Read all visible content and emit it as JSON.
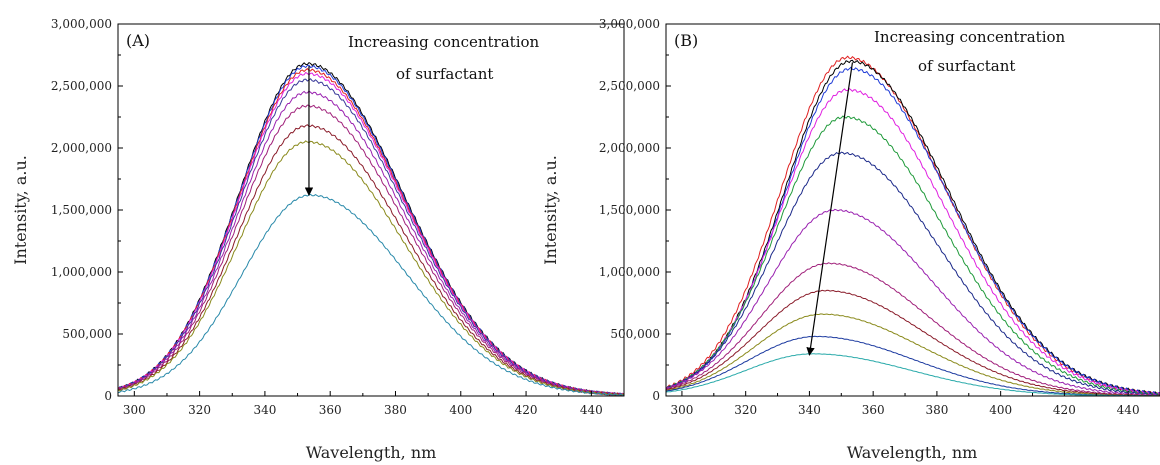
{
  "chart_data": [
    {
      "type": "line",
      "panel_label": "(A)",
      "annotation": [
        "Increasing concentration",
        "of surfactant"
      ],
      "xlabel": "Wavelength, nm",
      "ylabel": "Intensity, a.u.",
      "xlim": [
        295,
        450
      ],
      "ylim": [
        0,
        3000000
      ],
      "x_ticks": [
        "300",
        "320",
        "340",
        "360",
        "380",
        "400",
        "420",
        "440"
      ],
      "y_ticks": [
        "0",
        "500,000",
        "1,000,000",
        "1,500,000",
        "2,000,000",
        "2,500,000",
        "3,000,000"
      ],
      "curve_shape": {
        "x_start": 295,
        "x_end": 450,
        "sigma_left": 21,
        "sigma_right": 29.5
      },
      "arrow": {
        "from": [
          353.5,
          2660000
        ],
        "to": [
          353.5,
          1620000
        ]
      },
      "series": [
        {
          "color": "#000000",
          "peak_x": 353,
          "peak_y": 2680000
        },
        {
          "color": "#1f3bd6",
          "peak_x": 353,
          "peak_y": 2660000
        },
        {
          "color": "#e02020",
          "peak_x": 353,
          "peak_y": 2630000
        },
        {
          "color": "#e020e0",
          "peak_x": 353,
          "peak_y": 2600000
        },
        {
          "color": "#3a3a9a",
          "peak_x": 353,
          "peak_y": 2550000
        },
        {
          "color": "#9a22b0",
          "peak_x": 353,
          "peak_y": 2450000
        },
        {
          "color": "#a0207a",
          "peak_x": 353,
          "peak_y": 2340000
        },
        {
          "color": "#8a1c2a",
          "peak_x": 353,
          "peak_y": 2180000
        },
        {
          "color": "#8a8a1c",
          "peak_x": 353,
          "peak_y": 2050000
        },
        {
          "color": "#2a8aaa",
          "peak_x": 354,
          "peak_y": 1620000
        }
      ]
    },
    {
      "type": "line",
      "panel_label": "(B)",
      "annotation": [
        "Increasing concentration",
        "of surfactant"
      ],
      "xlabel": "Wavelength, nm",
      "ylabel": "Intensity, a.u.",
      "xlim": [
        295,
        450
      ],
      "ylim": [
        0,
        3000000
      ],
      "x_ticks": [
        "300",
        "320",
        "340",
        "360",
        "380",
        "400",
        "420",
        "440"
      ],
      "y_ticks": [
        "0",
        "500,000",
        "1,000,000",
        "1,500,000",
        "2,000,000",
        "2,500,000",
        "3,000,000"
      ],
      "curve_shape": {
        "x_start": 295,
        "x_end": 450,
        "sigma_left": 21,
        "sigma_right": 31
      },
      "arrow": {
        "from": [
          353.5,
          2690000
        ],
        "to": [
          340,
          330000
        ]
      },
      "series": [
        {
          "color": "#e02020",
          "peak_x": 352,
          "peak_y": 2730000
        },
        {
          "color": "#000000",
          "peak_x": 353,
          "peak_y": 2700000
        },
        {
          "color": "#1f3bd6",
          "peak_x": 353,
          "peak_y": 2640000
        },
        {
          "color": "#e020e0",
          "peak_x": 352,
          "peak_y": 2470000
        },
        {
          "color": "#1f9a3a",
          "peak_x": 351,
          "peak_y": 2250000
        },
        {
          "color": "#1c2a8a",
          "peak_x": 350,
          "peak_y": 1960000
        },
        {
          "color": "#9a22b0",
          "peak_x": 348,
          "peak_y": 1500000
        },
        {
          "color": "#a0207a",
          "peak_x": 346,
          "peak_y": 1070000
        },
        {
          "color": "#8a1c2a",
          "peak_x": 345,
          "peak_y": 850000
        },
        {
          "color": "#8a8a1c",
          "peak_x": 344,
          "peak_y": 660000
        },
        {
          "color": "#1c3aa0",
          "peak_x": 342,
          "peak_y": 480000
        },
        {
          "color": "#2aaaaa",
          "peak_x": 341,
          "peak_y": 340000
        }
      ]
    }
  ]
}
